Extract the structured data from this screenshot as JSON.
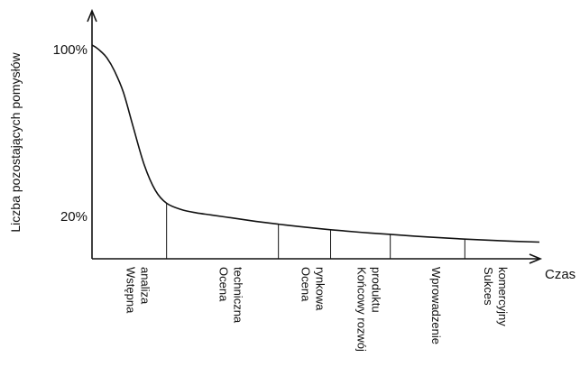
{
  "chart_data": {
    "type": "line",
    "title": "",
    "ylabel": "Liczba pozostających pomysłów",
    "xlabel": "Czas",
    "ytick_labels": [
      "100%",
      "20%"
    ],
    "stages": [
      {
        "label_lines": [
          "Wstępna",
          "analiza"
        ]
      },
      {
        "label_lines": [
          "Ocena",
          "techniczna"
        ]
      },
      {
        "label_lines": [
          "Ocena",
          "rynkowa"
        ]
      },
      {
        "label_lines": [
          "Końcowy rozwój",
          "produktu"
        ]
      },
      {
        "label_lines": [
          "Wprowadzenie"
        ]
      },
      {
        "label_lines": [
          "Sukces",
          "komercyjny"
        ]
      }
    ],
    "series": [
      {
        "x": [
          0.0,
          0.05,
          0.12,
          0.2,
          0.3,
          0.42,
          0.55,
          0.7,
          0.85,
          1.0,
          1.2,
          1.4,
          1.6,
          1.9,
          2.2,
          2.5,
          2.8,
          3.2,
          3.6,
          4.0,
          4.5,
          5.0,
          5.5,
          6.0
        ],
        "y": [
          100,
          99,
          97,
          94,
          88,
          78,
          62,
          44,
          32,
          26,
          23,
          21.5,
          20.5,
          19.0,
          17.5,
          16.2,
          15.0,
          13.6,
          12.4,
          11.4,
          10.2,
          9.2,
          8.4,
          7.8
        ]
      }
    ],
    "stage_dividers_x": [
      1.0,
      2.5,
      3.2,
      4.0,
      5.0
    ],
    "xlim": [
      0,
      6
    ],
    "ylim": [
      0,
      100
    ],
    "grid": false,
    "legend": "none"
  }
}
